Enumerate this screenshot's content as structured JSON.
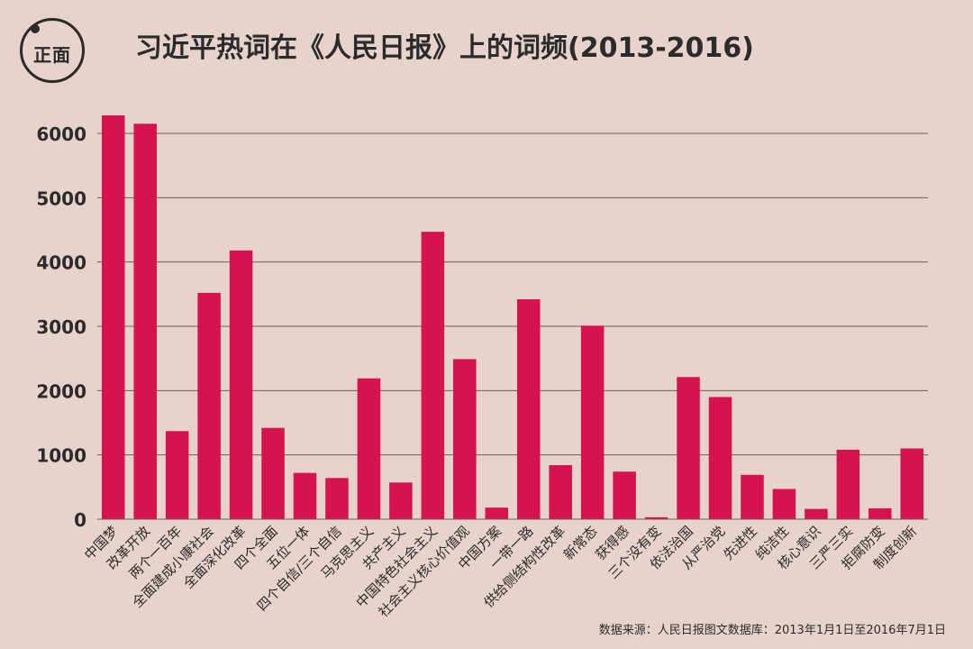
{
  "logo": {
    "text": "正面"
  },
  "chart_data": {
    "type": "bar",
    "title": "习近平热词在《人民日报》上的词频(2013-2016)",
    "source": "数据来源：人民日报图文数据库：2013年1月1日至2016年7月1日",
    "categories": [
      "中国梦",
      "改革开放",
      "两个一百年",
      "全面建成小康社会",
      "全面深化改革",
      "四个全面",
      "五位一体",
      "四个自信/三个自信",
      "马克思主义",
      "共产主义",
      "中国特色社会主义",
      "社会主义核心价值观",
      "中国方案",
      "一带一路",
      "供给侧结构性改革",
      "新常态",
      "获得感",
      "三个没有变",
      "依法治国",
      "从严治党",
      "先进性",
      "纯洁性",
      "核心意识",
      "三严三实",
      "拒腐防变",
      "制度创新"
    ],
    "values": [
      6280,
      6150,
      1370,
      3520,
      4180,
      1420,
      720,
      640,
      2190,
      570,
      4470,
      2490,
      180,
      3420,
      840,
      3010,
      740,
      30,
      2210,
      1900,
      690,
      470,
      160,
      1080,
      170,
      1100
    ],
    "yticks": [
      0,
      1000,
      2000,
      3000,
      4000,
      5000,
      6000
    ],
    "ylim": [
      0,
      6000
    ],
    "grid": true,
    "bar_color": "#d6124f"
  }
}
